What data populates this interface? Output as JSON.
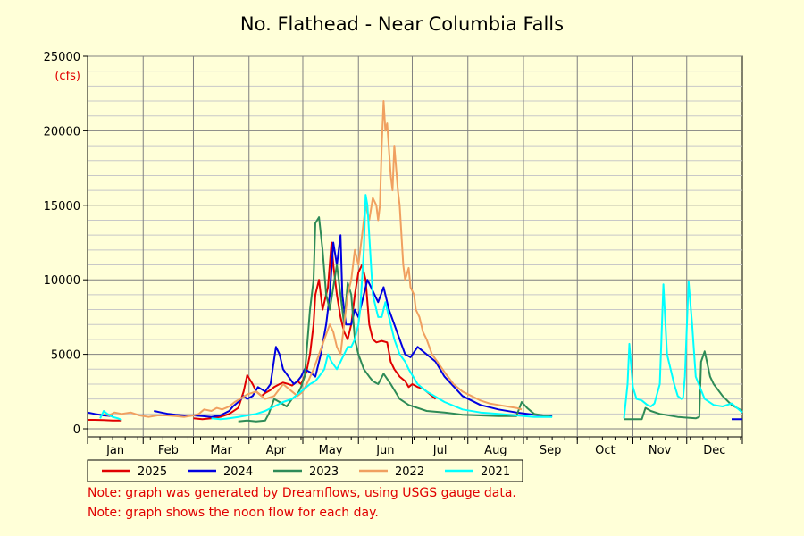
{
  "chart_data": {
    "type": "line",
    "title": "No. Flathead - Near Columbia Falls",
    "unit_label": "(cfs)",
    "xlabel": "",
    "ylabel": "",
    "ylim": [
      0,
      25000
    ],
    "y_ticks": [
      0,
      5000,
      10000,
      15000,
      20000,
      25000
    ],
    "x_unit": "day of year",
    "xlim": [
      1,
      366
    ],
    "months": [
      "Jan",
      "Feb",
      "Mar",
      "Apr",
      "May",
      "Jun",
      "Jul",
      "Aug",
      "Sep",
      "Oct",
      "Nov",
      "Dec"
    ],
    "grid": true,
    "legend_position": "bottom",
    "series": [
      {
        "name": "2025",
        "color": "#E00000",
        "x": [
          1,
          5,
          10,
          15,
          20,
          60,
          65,
          70,
          75,
          80,
          85,
          88,
          90,
          93,
          95,
          98,
          100,
          103,
          105,
          108,
          110,
          113,
          115,
          118,
          120,
          123,
          125,
          127,
          128,
          130,
          132,
          133,
          135,
          137,
          138,
          140,
          142,
          144,
          146,
          148,
          150,
          152,
          154,
          156,
          158,
          160,
          162,
          165,
          168,
          170,
          172,
          175,
          178,
          180,
          182,
          185,
          188,
          190,
          192,
          195
        ],
        "y": [
          600,
          600,
          580,
          560,
          560,
          700,
          650,
          700,
          800,
          1000,
          1400,
          2500,
          3600,
          3000,
          2500,
          2200,
          2400,
          2600,
          2800,
          3000,
          3100,
          3000,
          2900,
          3200,
          3000,
          3800,
          5000,
          7000,
          9000,
          10000,
          8000,
          8500,
          9500,
          12500,
          11000,
          9000,
          7500,
          6500,
          6000,
          7000,
          9000,
          10500,
          11000,
          10000,
          7000,
          6000,
          5800,
          5900,
          5800,
          4500,
          4000,
          3500,
          3200,
          2800,
          3000,
          2800,
          2700,
          2500,
          2300,
          2000
        ]
      },
      {
        "name": "2024",
        "color": "#0000E0",
        "x": [
          1,
          5,
          10,
          15,
          38,
          42,
          46,
          50,
          55,
          60,
          65,
          70,
          75,
          80,
          82,
          85,
          88,
          90,
          93,
          96,
          100,
          103,
          106,
          108,
          110,
          113,
          116,
          118,
          120,
          122,
          125,
          128,
          131,
          134,
          136,
          138,
          140,
          142,
          143,
          145,
          148,
          150,
          152,
          153,
          155,
          157,
          159,
          161,
          163,
          166,
          169,
          172,
          175,
          178,
          181,
          185,
          190,
          195,
          200,
          210,
          220,
          230,
          240,
          250,
          260,
          280,
          300,
          320,
          340,
          360,
          366
        ],
        "y": [
          1100,
          1000,
          900,
          850,
          1200,
          1100,
          1000,
          950,
          900,
          900,
          850,
          800,
          900,
          1200,
          1500,
          1800,
          2200,
          2000,
          2200,
          2800,
          2500,
          3000,
          5500,
          5000,
          4000,
          3500,
          3000,
          3200,
          3500,
          4000,
          3800,
          3500,
          5000,
          7000,
          9000,
          12500,
          11000,
          13000,
          9000,
          7000,
          7000,
          8000,
          7500,
          8000,
          9000,
          10000,
          9500,
          9000,
          8500,
          9500,
          8000,
          7000,
          6000,
          5000,
          4800,
          5500,
          5000,
          4500,
          3500,
          2200,
          1600,
          1300,
          1100,
          950,
          850,
          750,
          700,
          650,
          650,
          650,
          650
        ]
      },
      {
        "name": "2023",
        "color": "#2E8B57",
        "x": [
          85,
          90,
          95,
          100,
          102,
          105,
          108,
          112,
          115,
          118,
          120,
          122,
          123,
          125,
          127,
          128,
          130,
          132,
          134,
          136,
          138,
          140,
          142,
          144,
          146,
          148,
          150,
          152,
          155,
          158,
          160,
          163,
          166,
          170,
          175,
          180,
          190,
          200,
          210,
          220,
          230,
          240,
          243,
          246,
          250,
          260,
          280,
          300,
          310,
          312,
          315,
          320,
          330,
          340,
          342,
          343,
          345,
          348,
          350,
          355,
          360,
          366
        ],
        "y": [
          500,
          550,
          500,
          550,
          1000,
          2000,
          1800,
          1500,
          2000,
          2300,
          2800,
          3500,
          5000,
          8000,
          10000,
          13800,
          14200,
          12000,
          9000,
          8000,
          9500,
          11000,
          9000,
          7000,
          9800,
          9000,
          6000,
          5000,
          4000,
          3500,
          3200,
          3000,
          3700,
          3000,
          2000,
          1600,
          1200,
          1100,
          950,
          900,
          850,
          850,
          1800,
          1400,
          1000,
          800,
          700,
          650,
          650,
          1400,
          1200,
          1000,
          800,
          700,
          800,
          4500,
          5200,
          3500,
          3000,
          2200,
          1600,
          1200
        ]
      },
      {
        "name": "2022",
        "color": "#F0A060",
        "x": [
          10,
          13,
          16,
          20,
          25,
          30,
          35,
          40,
          45,
          50,
          55,
          60,
          63,
          66,
          70,
          73,
          76,
          80,
          83,
          86,
          90,
          95,
          100,
          105,
          110,
          115,
          118,
          121,
          124,
          127,
          130,
          133,
          136,
          138,
          140,
          142,
          144,
          146,
          148,
          150,
          152,
          154,
          156,
          158,
          160,
          162,
          163,
          164,
          165,
          166,
          167,
          168,
          170,
          171,
          172,
          173,
          174,
          175,
          177,
          178,
          180,
          181,
          183,
          184,
          186,
          188,
          190,
          193,
          196,
          200,
          205,
          210,
          215,
          220,
          225,
          230,
          235,
          240,
          243
        ],
        "y": [
          1000,
          900,
          1100,
          1000,
          1100,
          900,
          800,
          900,
          900,
          850,
          800,
          900,
          1000,
          1300,
          1200,
          1400,
          1300,
          1500,
          1800,
          2000,
          2300,
          2500,
          2000,
          2200,
          3000,
          2500,
          2200,
          2500,
          3200,
          4000,
          5000,
          6000,
          7000,
          6500,
          5500,
          5000,
          7000,
          9000,
          10000,
          12000,
          11000,
          13000,
          15000,
          14000,
          15500,
          15000,
          14000,
          15000,
          19000,
          22000,
          20000,
          20500,
          17000,
          16000,
          19000,
          17500,
          16000,
          15000,
          11000,
          10000,
          10800,
          9500,
          9000,
          8000,
          7500,
          6500,
          6000,
          5000,
          4500,
          3800,
          3000,
          2500,
          2200,
          1900,
          1700,
          1600,
          1500,
          1400,
          1300
        ]
      },
      {
        "name": "2021",
        "color": "#00FFFF",
        "x": [
          8,
          10,
          12,
          15,
          18,
          20,
          70,
          75,
          80,
          85,
          90,
          95,
          100,
          105,
          110,
          115,
          118,
          120,
          123,
          125,
          128,
          130,
          133,
          135,
          137,
          140,
          142,
          144,
          146,
          148,
          150,
          152,
          153,
          155,
          156,
          157,
          158,
          160,
          162,
          163,
          165,
          167,
          170,
          172,
          175,
          178,
          180,
          185,
          190,
          200,
          210,
          220,
          230,
          240,
          250,
          260,
          280,
          300,
          302,
          303,
          305,
          307,
          310,
          313,
          315,
          317,
          320,
          322,
          324,
          326,
          328,
          330,
          332,
          333,
          334,
          336,
          338,
          340,
          345,
          350,
          355,
          360,
          366
        ],
        "y": [
          700,
          1200,
          1000,
          800,
          700,
          600,
          700,
          650,
          700,
          800,
          900,
          1000,
          1200,
          1500,
          1800,
          2000,
          2300,
          2500,
          2800,
          3000,
          3200,
          3500,
          4000,
          5000,
          4500,
          4000,
          4500,
          5000,
          5500,
          5500,
          6000,
          7000,
          8000,
          12000,
          15700,
          15000,
          13000,
          9000,
          8000,
          7500,
          7500,
          8500,
          7000,
          6000,
          5000,
          4500,
          4000,
          3000,
          2500,
          1800,
          1300,
          1100,
          1000,
          900,
          800,
          800,
          650,
          700,
          3000,
          5700,
          2800,
          2000,
          1900,
          1600,
          1500,
          1700,
          3000,
          9700,
          5000,
          4000,
          3000,
          2200,
          2000,
          2100,
          3500,
          9900,
          7000,
          3500,
          2000,
          1600,
          1500,
          1700,
          1100
        ]
      }
    ]
  },
  "notes": [
    "Note: graph was generated by Dreamflows, using USGS gauge data.",
    "Note: graph shows the noon flow for each day."
  ]
}
